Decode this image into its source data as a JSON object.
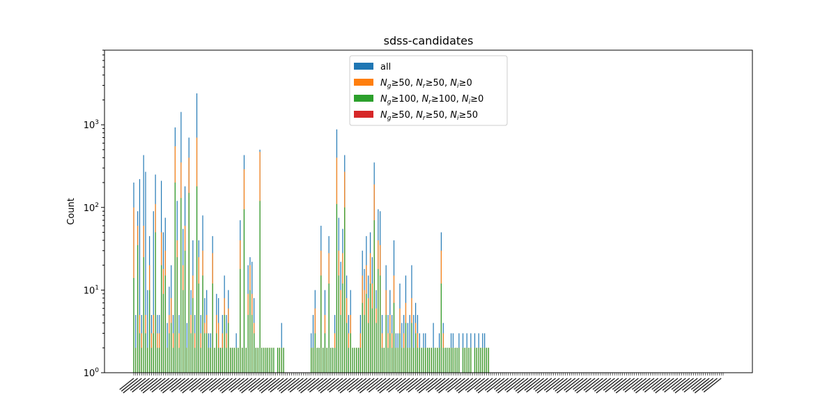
{
  "chart_data": {
    "type": "bar",
    "title": "sdss-candidates",
    "xlabel": "",
    "ylabel": "Count",
    "yscale": "log",
    "ylim": [
      1,
      8000
    ],
    "yticks": [
      {
        "value": 1,
        "base": "10",
        "exp": "0"
      },
      {
        "value": 10,
        "base": "10",
        "exp": "1"
      },
      {
        "value": 100,
        "base": "10",
        "exp": "2"
      },
      {
        "value": 1000,
        "base": "10",
        "exp": "3"
      }
    ],
    "legend_position": "upper-center",
    "colors": [
      "#1f77b4",
      "#ff7f0e",
      "#2ca02c",
      "#d62728"
    ],
    "x_tick_labels_legible": false,
    "bin_count": 300,
    "series": [
      {
        "name": "all",
        "color": "#1f77b4",
        "values": [
          200,
          5,
          90,
          220,
          5,
          430,
          270,
          10,
          45,
          5,
          90,
          250,
          5,
          5,
          210,
          50,
          75,
          4,
          11,
          20,
          5,
          930,
          120,
          5,
          1430,
          55,
          180,
          4,
          700,
          10,
          40,
          5,
          2400,
          40,
          5,
          80,
          8,
          10,
          3,
          3,
          45,
          2,
          9,
          8,
          2,
          5,
          15,
          5,
          10,
          2,
          2,
          2,
          3,
          2,
          70,
          2,
          430,
          2,
          20,
          25,
          22,
          8,
          2,
          2,
          500,
          2,
          2,
          2,
          2,
          2,
          2,
          2,
          1,
          2,
          2,
          4,
          2,
          1,
          1,
          1,
          1,
          1,
          1,
          1,
          1,
          1,
          1,
          1,
          1,
          1,
          3,
          5,
          10,
          2,
          2,
          60,
          2,
          10,
          2,
          45,
          2,
          2,
          5,
          880,
          75,
          22,
          55,
          430,
          15,
          5,
          10,
          2,
          2,
          2,
          2,
          5,
          30,
          18,
          45,
          15,
          50,
          25,
          350,
          10,
          95,
          90,
          5,
          2,
          20,
          5,
          10,
          5,
          40,
          3,
          3,
          12,
          4,
          5,
          15,
          4,
          5,
          20,
          5,
          7,
          5,
          3,
          2,
          3,
          3,
          2,
          2,
          2,
          4,
          2,
          2,
          3,
          50,
          4,
          2,
          2,
          2,
          3,
          3,
          2,
          2,
          3,
          1,
          3,
          2,
          3,
          2,
          3,
          1,
          3,
          2,
          3,
          2,
          3,
          3,
          2,
          2,
          1,
          1,
          1,
          1,
          1,
          1,
          1,
          1,
          1,
          1,
          1,
          1,
          1,
          1,
          1,
          1,
          1,
          1,
          1,
          1,
          1,
          1,
          1,
          1,
          1,
          1,
          1,
          1,
          1,
          1,
          1,
          1,
          1,
          1,
          1,
          1,
          1,
          1,
          1,
          1,
          1,
          1,
          1,
          1,
          1,
          1,
          1,
          1,
          1,
          1,
          1,
          1,
          1,
          1,
          1,
          1,
          1,
          1,
          1,
          1,
          1,
          1,
          1,
          1,
          1,
          1,
          1,
          1,
          1,
          1,
          1,
          1,
          1,
          1,
          1,
          1,
          1,
          1,
          1,
          1,
          1,
          1,
          1,
          1,
          1,
          1,
          1,
          1,
          1,
          1,
          1,
          1,
          1,
          1,
          1,
          1,
          1,
          1,
          1,
          1,
          1,
          1,
          1,
          1,
          1,
          1,
          1,
          1,
          1,
          1,
          1,
          1,
          1,
          1,
          1,
          1,
          1,
          1,
          1,
          1,
          1,
          1,
          1,
          1,
          1,
          1,
          1,
          1,
          1,
          1,
          1,
          1,
          1,
          1,
          1,
          1,
          1,
          1,
          1,
          1,
          1
        ]
      },
      {
        "name": "$N_g \\geq 50$, $N_r \\geq 50$, $N_i \\geq 0$",
        "label_parts": [
          [
            "N",
            "g",
            "≥50, "
          ],
          [
            "N",
            "r",
            "≥50, "
          ],
          [
            "N",
            "i",
            "≥0"
          ]
        ],
        "color": "#ff7f0e",
        "values": [
          100,
          2,
          60,
          5,
          3,
          60,
          5,
          2,
          20,
          3,
          5,
          110,
          3,
          3,
          50,
          18,
          30,
          2,
          5,
          8,
          3,
          550,
          40,
          3,
          350,
          20,
          60,
          2,
          400,
          5,
          15,
          3,
          700,
          25,
          3,
          30,
          4,
          5,
          2,
          2,
          28,
          2,
          5,
          4,
          2,
          3,
          8,
          3,
          6,
          2,
          2,
          2,
          2,
          2,
          40,
          2,
          290,
          2,
          9,
          20,
          9,
          4,
          2,
          2,
          470,
          2,
          2,
          2,
          2,
          2,
          2,
          2,
          1,
          2,
          2,
          2,
          2,
          1,
          1,
          1,
          1,
          1,
          1,
          1,
          1,
          1,
          1,
          1,
          1,
          1,
          2,
          2,
          6,
          2,
          2,
          30,
          2,
          5,
          2,
          28,
          2,
          2,
          3,
          400,
          30,
          10,
          28,
          270,
          8,
          3,
          5,
          2,
          2,
          2,
          2,
          3,
          15,
          10,
          20,
          8,
          28,
          12,
          190,
          6,
          40,
          35,
          3,
          2,
          10,
          3,
          5,
          3,
          15,
          2,
          2,
          6,
          2,
          3,
          7,
          2,
          2,
          8,
          2,
          4,
          3,
          2,
          2,
          2,
          2,
          2,
          2,
          2,
          2,
          2,
          2,
          2,
          30,
          3,
          2,
          2,
          2,
          2,
          2,
          2,
          2,
          2,
          1,
          2,
          2,
          2,
          2,
          2,
          1,
          2,
          2,
          2,
          2,
          2,
          2,
          2,
          2,
          1,
          1,
          1,
          1,
          1,
          1,
          1,
          1,
          1,
          1,
          1,
          1,
          1,
          1,
          1,
          1,
          1,
          1,
          1,
          1,
          1,
          1,
          1,
          1,
          1,
          1,
          1,
          1,
          1,
          1,
          1,
          1,
          1,
          1,
          1,
          1,
          1,
          1,
          1,
          1,
          1,
          1,
          1,
          1,
          1,
          1,
          1,
          1,
          1,
          1,
          1,
          1,
          1,
          1,
          1,
          1,
          1,
          1,
          1,
          1,
          1,
          1,
          1,
          1,
          1,
          1,
          1,
          1,
          1,
          1,
          1,
          1,
          1,
          1,
          1,
          1,
          1,
          1,
          1,
          1,
          1,
          1,
          1,
          1,
          1,
          1,
          1,
          1,
          1,
          1,
          1,
          1,
          1,
          1,
          1,
          1,
          1,
          1,
          1,
          1,
          1,
          1,
          1,
          1,
          1,
          1,
          1,
          1,
          1,
          1,
          1,
          1,
          1,
          1,
          1,
          1,
          1,
          1,
          1,
          1,
          1,
          1,
          1,
          1,
          1,
          1,
          1,
          1,
          1,
          1,
          1,
          1,
          1,
          1,
          1,
          1,
          1,
          1,
          1,
          1,
          1
        ]
      },
      {
        "name": "$N_g \\geq 100$, $N_r \\geq 100$, $N_i \\geq 0$",
        "label_parts": [
          [
            "N",
            "g",
            "≥100, "
          ],
          [
            "N",
            "r",
            "≥100, "
          ],
          [
            "N",
            "i",
            "≥0"
          ]
        ],
        "color": "#2ca02c",
        "values": [
          14,
          2,
          35,
          3,
          2,
          25,
          3,
          2,
          10,
          2,
          3,
          50,
          2,
          2,
          20,
          9,
          15,
          2,
          3,
          4,
          2,
          200,
          25,
          2,
          130,
          10,
          30,
          2,
          150,
          3,
          8,
          2,
          180,
          12,
          2,
          15,
          3,
          3,
          2,
          2,
          12,
          2,
          3,
          2,
          2,
          2,
          5,
          2,
          4,
          2,
          2,
          2,
          2,
          2,
          18,
          2,
          95,
          2,
          5,
          10,
          5,
          3,
          2,
          2,
          120,
          2,
          2,
          2,
          2,
          2,
          2,
          2,
          1,
          2,
          2,
          2,
          2,
          1,
          1,
          1,
          1,
          1,
          1,
          1,
          1,
          1,
          1,
          1,
          1,
          1,
          2,
          2,
          3,
          2,
          2,
          15,
          2,
          3,
          2,
          12,
          2,
          2,
          2,
          110,
          15,
          5,
          12,
          100,
          4,
          2,
          3,
          2,
          2,
          2,
          2,
          2,
          7,
          5,
          9,
          4,
          12,
          6,
          70,
          4,
          18,
          15,
          2,
          2,
          5,
          2,
          3,
          2,
          7,
          2,
          2,
          3,
          2,
          2,
          4,
          2,
          2,
          4,
          2,
          3,
          2,
          2,
          2,
          2,
          2,
          2,
          2,
          2,
          2,
          2,
          2,
          2,
          12,
          2,
          2,
          2,
          2,
          2,
          2,
          2,
          2,
          2,
          1,
          2,
          2,
          2,
          2,
          2,
          1,
          2,
          2,
          2,
          2,
          2,
          2,
          2,
          2,
          1,
          1,
          1,
          1,
          1,
          1,
          1,
          1,
          1,
          1,
          1,
          1,
          1,
          1,
          1,
          1,
          1,
          1,
          1,
          1,
          1,
          1,
          1,
          1,
          1,
          1,
          1,
          1,
          1,
          1,
          1,
          1,
          1,
          1,
          1,
          1,
          1,
          1,
          1,
          1,
          1,
          1,
          1,
          1,
          1,
          1,
          1,
          1,
          1,
          1,
          1,
          1,
          1,
          1,
          1,
          1,
          1,
          1,
          1,
          1,
          1,
          1,
          1,
          1,
          1,
          1,
          1,
          1,
          1,
          1,
          1,
          1,
          1,
          1,
          1,
          1,
          1,
          1,
          1,
          1,
          1,
          1,
          1,
          1,
          1,
          1,
          1,
          1,
          1,
          1,
          1,
          1,
          1,
          1,
          1,
          1,
          1,
          1,
          1,
          1,
          1,
          1,
          1,
          1,
          1,
          1,
          1,
          1,
          1,
          1,
          1,
          1,
          1,
          1,
          1,
          1,
          1,
          1,
          1,
          1,
          1,
          1,
          1,
          1,
          1,
          1,
          1,
          1,
          1,
          1,
          1,
          1,
          1,
          1,
          1,
          1,
          1,
          1,
          1,
          1,
          1,
          1
        ]
      },
      {
        "name": "$N_g \\geq 50$, $N_r \\geq 50$, $N_i \\geq 50$",
        "label_parts": [
          [
            "N",
            "g",
            "≥50, "
          ],
          [
            "N",
            "r",
            "≥50, "
          ],
          [
            "N",
            "i",
            "≥50"
          ]
        ],
        "color": "#d62728",
        "values": [
          1,
          1,
          1,
          1,
          1,
          1,
          1,
          1,
          1,
          1,
          1,
          1,
          1,
          1,
          1,
          1,
          1,
          1,
          1,
          1,
          1,
          1,
          1,
          1,
          1,
          1,
          1,
          1,
          1,
          1,
          1,
          1,
          1,
          1,
          1,
          1,
          1,
          1,
          1,
          1,
          1,
          1,
          1,
          1,
          1,
          1,
          1,
          1,
          1,
          1,
          1,
          1,
          1,
          1,
          1,
          1,
          1,
          1,
          1,
          1,
          1,
          1,
          1,
          1,
          1,
          1,
          1,
          1,
          1,
          1,
          1,
          1,
          1,
          1,
          1,
          1,
          1,
          1,
          1,
          1,
          1,
          1,
          1,
          1,
          1,
          1,
          1,
          1,
          1,
          1,
          1,
          1,
          1,
          1,
          1,
          1,
          1,
          1,
          1,
          1,
          1,
          1,
          1,
          1,
          1,
          1,
          1,
          1,
          1,
          1,
          1,
          1,
          1,
          1,
          1,
          1,
          1,
          1,
          1,
          1,
          1,
          1,
          1,
          1,
          1,
          1,
          1,
          1,
          1,
          1,
          1,
          1,
          1,
          1,
          1,
          1,
          1,
          1,
          1,
          1,
          1,
          1,
          1,
          1,
          1,
          1,
          1,
          1,
          1,
          1,
          1,
          1,
          1,
          1,
          1,
          1,
          1,
          1,
          1,
          1,
          1,
          1,
          1,
          1,
          1,
          1,
          1,
          1,
          1,
          1,
          1,
          1,
          1,
          1,
          1,
          1,
          1,
          1,
          1,
          1,
          1,
          1,
          1,
          1,
          1,
          1,
          1,
          1,
          1,
          1,
          1,
          1,
          1,
          1,
          1,
          1,
          1,
          1,
          1,
          1,
          1,
          1,
          1,
          1,
          1,
          1,
          1,
          1,
          1,
          1,
          1,
          1,
          1,
          1,
          1,
          1,
          1,
          1,
          1,
          1,
          1,
          1,
          1,
          1,
          1,
          1,
          1,
          1,
          1,
          1,
          1,
          1,
          1,
          1,
          1,
          1,
          1,
          1,
          1,
          1,
          1,
          1,
          1,
          1,
          1,
          1,
          1,
          1,
          1,
          1,
          1,
          1,
          1,
          1,
          1,
          1,
          1,
          1,
          1,
          1,
          1,
          1,
          1,
          1,
          1,
          1,
          1,
          1,
          1,
          1,
          1,
          1,
          1,
          1,
          1,
          1,
          1,
          1,
          1,
          1,
          1,
          1,
          1,
          1,
          1,
          1,
          1,
          1,
          1,
          1,
          1,
          1,
          1,
          1,
          1,
          1,
          1,
          1,
          1,
          1,
          1,
          1,
          1,
          1,
          1,
          1,
          1,
          1,
          1,
          1,
          1,
          1,
          1,
          1,
          1,
          1,
          1,
          1,
          1,
          1,
          1
        ]
      }
    ]
  }
}
